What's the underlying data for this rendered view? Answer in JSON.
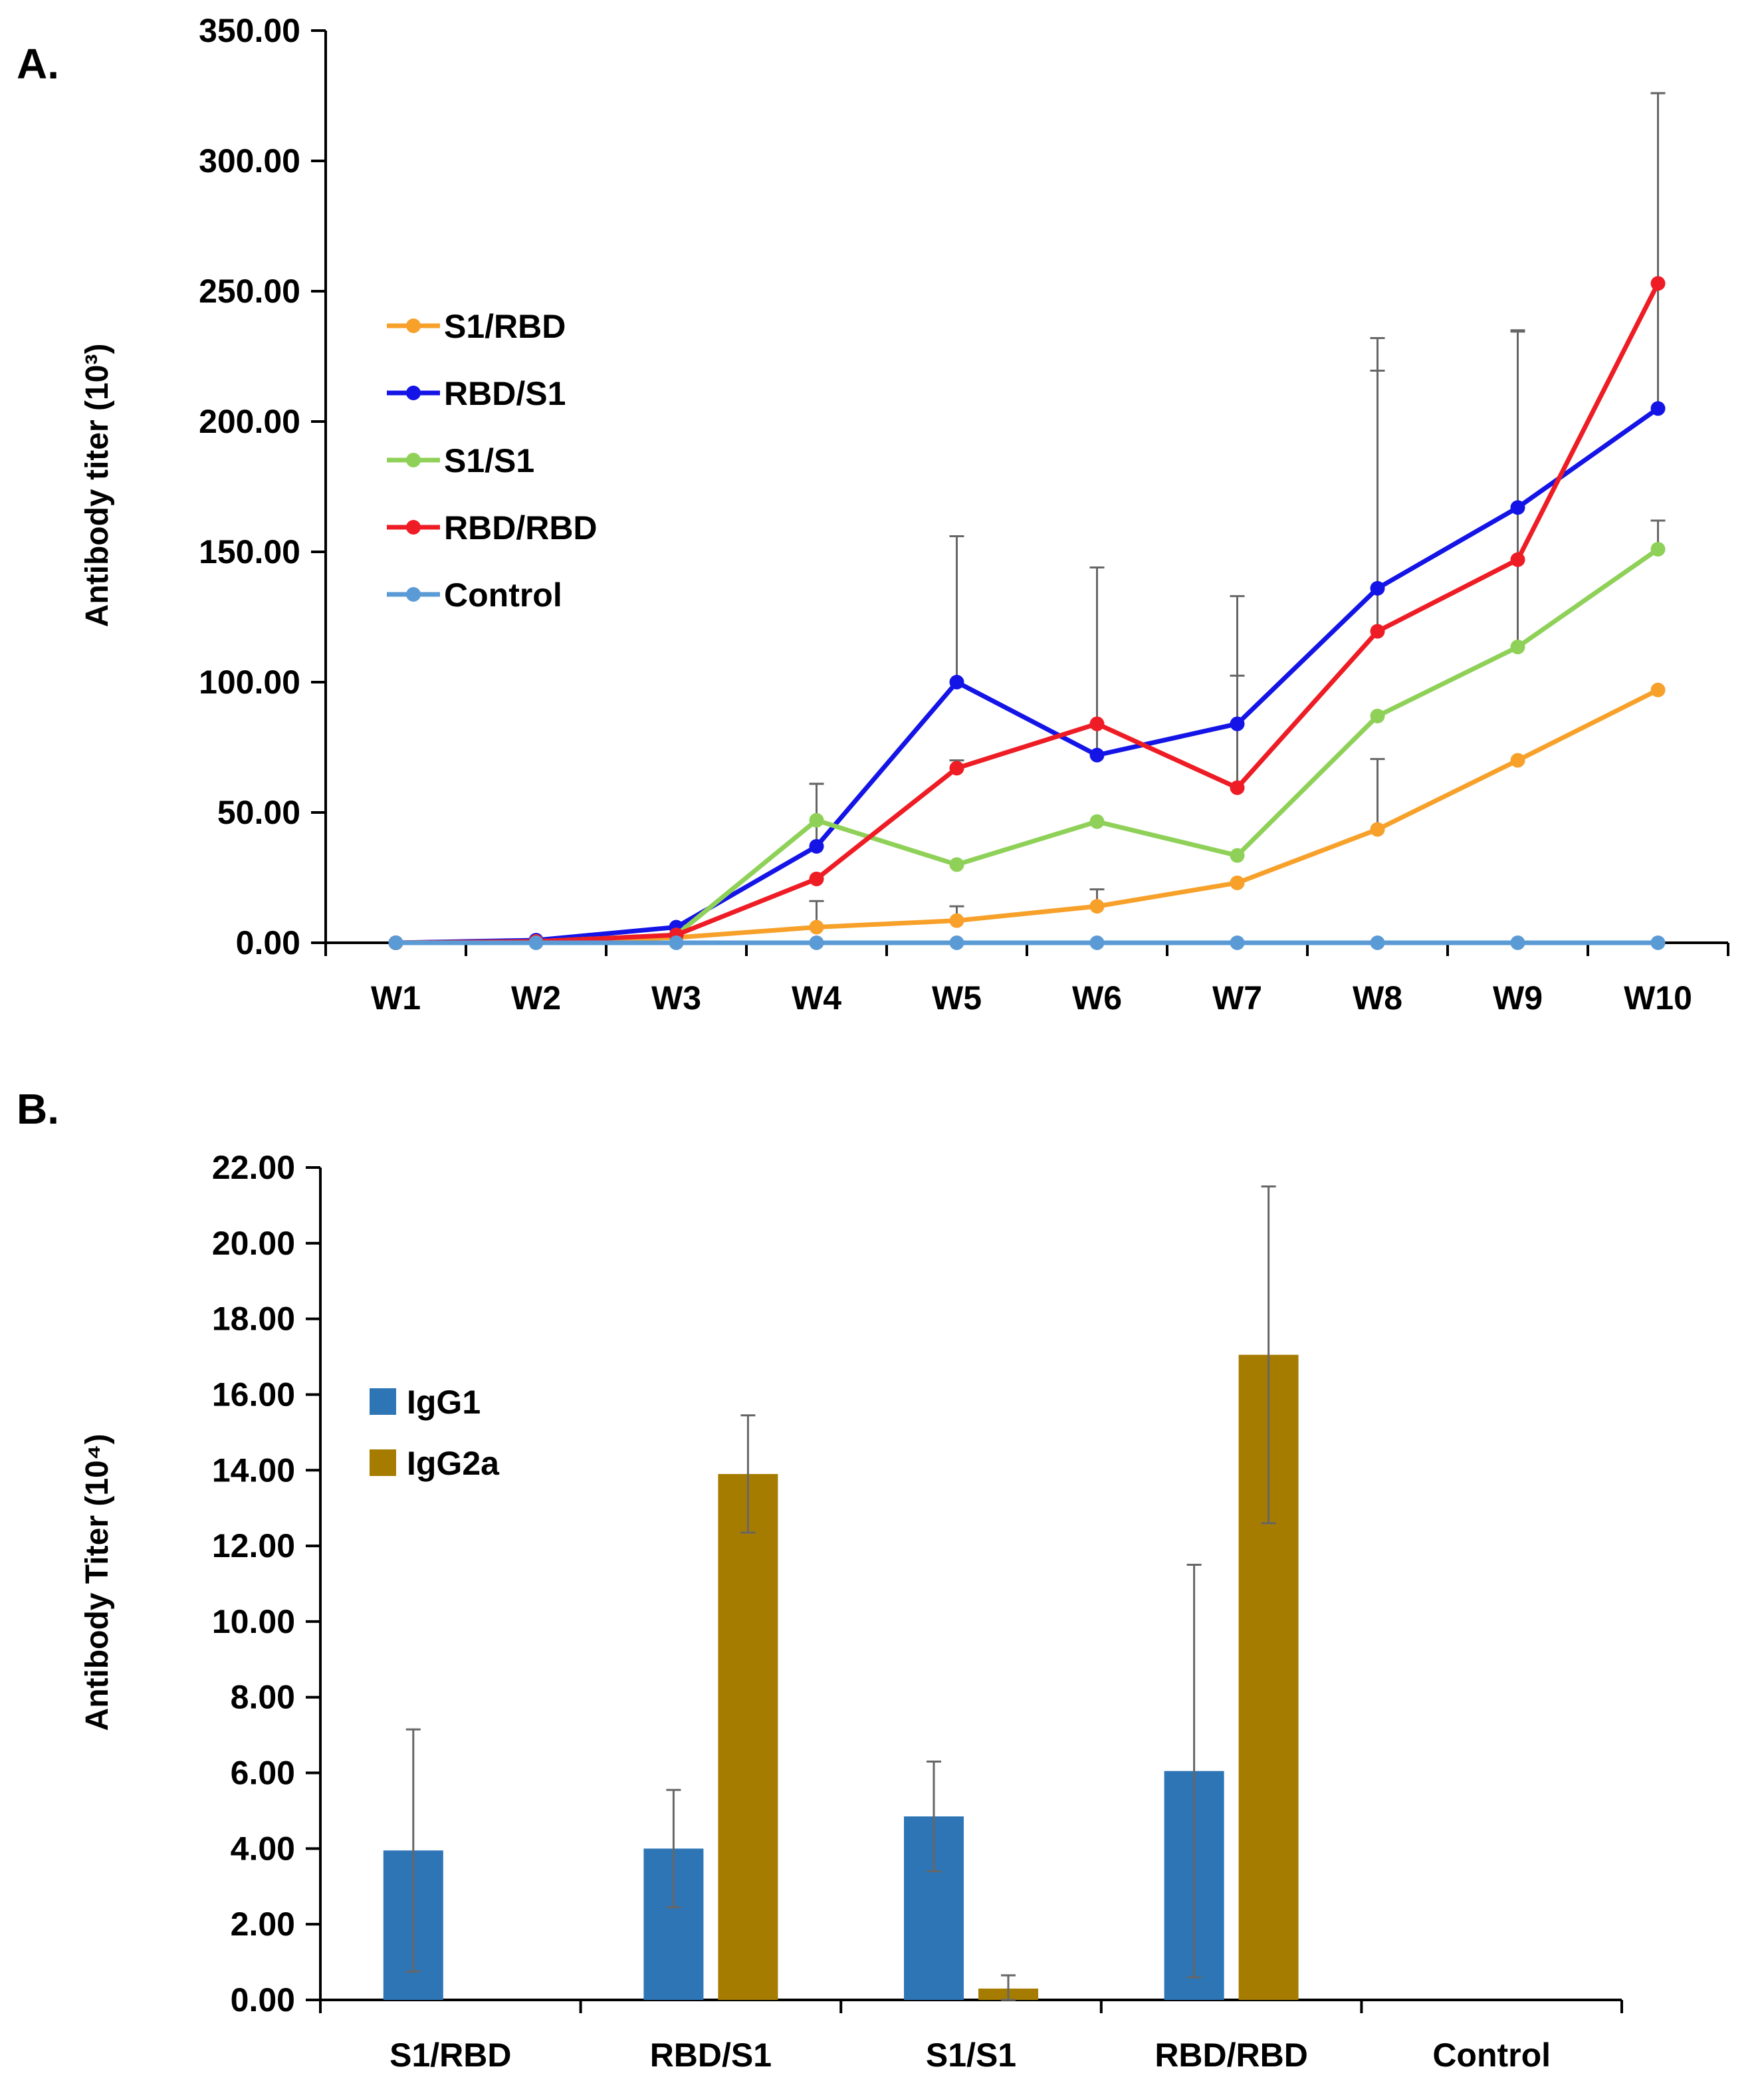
{
  "chart_data": [
    {
      "panel_label": "A.",
      "type": "line",
      "title": "",
      "xlabel": "",
      "ylabel": "Antibody titer (10³)",
      "ylim": [
        0,
        350
      ],
      "yticks": [
        "0.00",
        "50.00",
        "100.00",
        "150.00",
        "200.00",
        "250.00",
        "300.00",
        "350.00"
      ],
      "grid": false,
      "legend_position": "upper-left",
      "categories": [
        "W1",
        "W2",
        "W3",
        "W4",
        "W5",
        "W6",
        "W7",
        "W8",
        "W9",
        "W10"
      ],
      "series": [
        {
          "name": "S1/RBD",
          "color": "#f7a12b",
          "values": [
            0,
            0.5,
            2,
            6,
            8.5,
            14,
            23,
            43.5,
            70,
            97
          ],
          "err": [
            0,
            0.5,
            1,
            10,
            5.5,
            6.5,
            0,
            27,
            0,
            0
          ]
        },
        {
          "name": "RBD/S1",
          "color": "#1414e6",
          "values": [
            0,
            1,
            6,
            37,
            100,
            72,
            84,
            136,
            167,
            205
          ],
          "err": [
            0,
            0,
            0,
            24,
            56,
            72,
            49,
            96,
            68,
            121
          ]
        },
        {
          "name": "S1/S1",
          "color": "#8fd158",
          "values": [
            0,
            0.5,
            3,
            47,
            30,
            46.5,
            33.5,
            87,
            113.5,
            151
          ],
          "err": [
            0,
            0,
            0,
            14,
            0,
            0,
            0,
            0,
            121,
            11
          ]
        },
        {
          "name": "RBD/RBD",
          "color": "#ee1c24",
          "values": [
            0,
            0.5,
            3,
            24.5,
            67,
            84,
            59.5,
            119.5,
            147,
            253
          ],
          "err": [
            0,
            0,
            0,
            0,
            3,
            60,
            43,
            100,
            0,
            73
          ]
        },
        {
          "name": "Control",
          "color": "#5b9bd5",
          "values": [
            0,
            0,
            0,
            0,
            0,
            0,
            0,
            0,
            0,
            0
          ],
          "err": [
            0,
            0,
            0,
            0,
            0,
            0,
            0,
            0,
            0,
            0
          ]
        }
      ]
    },
    {
      "panel_label": "B.",
      "type": "bar",
      "title": "",
      "xlabel": "",
      "ylabel": "Antibody Titer (10⁴)",
      "ylim": [
        0,
        22
      ],
      "yticks": [
        "0.00",
        "2.00",
        "4.00",
        "6.00",
        "8.00",
        "10.00",
        "12.00",
        "14.00",
        "16.00",
        "18.00",
        "20.00",
        "22.00"
      ],
      "grid": false,
      "legend_position": "upper-left",
      "categories": [
        "S1/RBD",
        "RBD/S1",
        "S1/S1",
        "RBD/RBD",
        "Control"
      ],
      "series": [
        {
          "name": "IgG1",
          "color": "#2e75b6",
          "values": [
            3.95,
            4.0,
            4.85,
            6.05,
            0
          ],
          "err": [
            3.2,
            1.55,
            1.45,
            5.45,
            0
          ]
        },
        {
          "name": "IgG2a",
          "color": "#a67c00",
          "values": [
            0,
            13.9,
            0.3,
            17.05,
            0
          ],
          "err": [
            0,
            1.55,
            0.35,
            4.45,
            0
          ]
        }
      ]
    }
  ]
}
